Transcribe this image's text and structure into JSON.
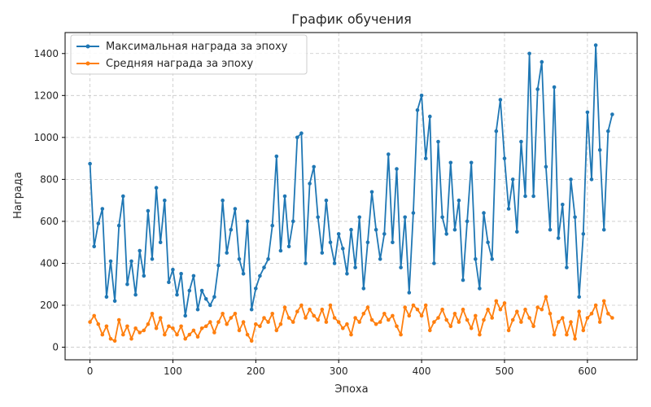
{
  "chart_data": {
    "type": "line",
    "title": "График обучения",
    "xlabel": "Эпоха",
    "ylabel": "Награда",
    "xlim": [
      -30,
      660
    ],
    "ylim": [
      -60,
      1500
    ],
    "xticks": [
      0,
      100,
      200,
      300,
      400,
      500,
      600
    ],
    "yticks": [
      0,
      200,
      400,
      600,
      800,
      1000,
      1200,
      1400
    ],
    "grid": true,
    "legend_position": "top-left",
    "series": [
      {
        "name": "Максимальная награда за эпоху",
        "color": "#1f77b4",
        "x": [
          0,
          5,
          10,
          15,
          20,
          25,
          30,
          35,
          40,
          45,
          50,
          55,
          60,
          65,
          70,
          75,
          80,
          85,
          90,
          95,
          100,
          105,
          110,
          115,
          120,
          125,
          130,
          135,
          140,
          145,
          150,
          155,
          160,
          165,
          170,
          175,
          180,
          185,
          190,
          195,
          200,
          205,
          210,
          215,
          220,
          225,
          230,
          235,
          240,
          245,
          250,
          255,
          260,
          265,
          270,
          275,
          280,
          285,
          290,
          295,
          300,
          305,
          310,
          315,
          320,
          325,
          330,
          335,
          340,
          345,
          350,
          355,
          360,
          365,
          370,
          375,
          380,
          385,
          390,
          395,
          400,
          405,
          410,
          415,
          420,
          425,
          430,
          435,
          440,
          445,
          450,
          455,
          460,
          465,
          470,
          475,
          480,
          485,
          490,
          495,
          500,
          505,
          510,
          515,
          520,
          525,
          530,
          535,
          540,
          545,
          550,
          555,
          560,
          565,
          570,
          575,
          580,
          585,
          590,
          595,
          600,
          605,
          610,
          615,
          620,
          625,
          630
        ],
        "values": [
          875,
          480,
          590,
          660,
          240,
          410,
          220,
          580,
          720,
          300,
          410,
          250,
          460,
          340,
          650,
          420,
          760,
          500,
          700,
          310,
          370,
          250,
          350,
          150,
          270,
          340,
          180,
          270,
          230,
          200,
          240,
          390,
          700,
          450,
          560,
          660,
          420,
          350,
          600,
          180,
          280,
          340,
          380,
          420,
          580,
          910,
          460,
          720,
          480,
          600,
          1000,
          1020,
          400,
          780,
          860,
          620,
          450,
          700,
          500,
          400,
          540,
          470,
          350,
          560,
          380,
          620,
          280,
          500,
          740,
          560,
          420,
          540,
          920,
          500,
          850,
          380,
          620,
          260,
          640,
          1130,
          1200,
          900,
          1100,
          400,
          980,
          620,
          540,
          880,
          560,
          700,
          320,
          600,
          880,
          420,
          280,
          640,
          500,
          420,
          1030,
          1180,
          900,
          660,
          800,
          550,
          980,
          720,
          1400,
          720,
          1230,
          1360,
          860,
          560,
          1240,
          520,
          680,
          380,
          800,
          620,
          240,
          540,
          1120,
          800,
          1440,
          940,
          560,
          1030,
          1110
        ]
      },
      {
        "name": "Средняя награда за эпоху",
        "color": "#ff7f0e",
        "x": [
          0,
          5,
          10,
          15,
          20,
          25,
          30,
          35,
          40,
          45,
          50,
          55,
          60,
          65,
          70,
          75,
          80,
          85,
          90,
          95,
          100,
          105,
          110,
          115,
          120,
          125,
          130,
          135,
          140,
          145,
          150,
          155,
          160,
          165,
          170,
          175,
          180,
          185,
          190,
          195,
          200,
          205,
          210,
          215,
          220,
          225,
          230,
          235,
          240,
          245,
          250,
          255,
          260,
          265,
          270,
          275,
          280,
          285,
          290,
          295,
          300,
          305,
          310,
          315,
          320,
          325,
          330,
          335,
          340,
          345,
          350,
          355,
          360,
          365,
          370,
          375,
          380,
          385,
          390,
          395,
          400,
          405,
          410,
          415,
          420,
          425,
          430,
          435,
          440,
          445,
          450,
          455,
          460,
          465,
          470,
          475,
          480,
          485,
          490,
          495,
          500,
          505,
          510,
          515,
          520,
          525,
          530,
          535,
          540,
          545,
          550,
          555,
          560,
          565,
          570,
          575,
          580,
          585,
          590,
          595,
          600,
          605,
          610,
          615,
          620,
          625,
          630
        ],
        "values": [
          120,
          150,
          110,
          60,
          100,
          40,
          30,
          130,
          60,
          100,
          40,
          90,
          70,
          80,
          110,
          160,
          90,
          140,
          60,
          100,
          90,
          60,
          100,
          40,
          60,
          80,
          50,
          90,
          100,
          120,
          70,
          120,
          160,
          110,
          140,
          160,
          80,
          120,
          60,
          30,
          110,
          100,
          140,
          120,
          160,
          80,
          110,
          190,
          140,
          120,
          170,
          200,
          140,
          180,
          150,
          130,
          180,
          120,
          200,
          140,
          120,
          90,
          110,
          60,
          140,
          120,
          160,
          190,
          130,
          110,
          120,
          160,
          130,
          150,
          100,
          60,
          190,
          150,
          200,
          180,
          150,
          200,
          80,
          120,
          140,
          180,
          130,
          100,
          160,
          120,
          180,
          130,
          90,
          150,
          60,
          130,
          180,
          140,
          220,
          180,
          210,
          80,
          130,
          170,
          120,
          180,
          140,
          100,
          190,
          180,
          240,
          160,
          60,
          120,
          140,
          60,
          120,
          40,
          170,
          80,
          140,
          160,
          200,
          120,
          220,
          160,
          140
        ]
      }
    ]
  }
}
